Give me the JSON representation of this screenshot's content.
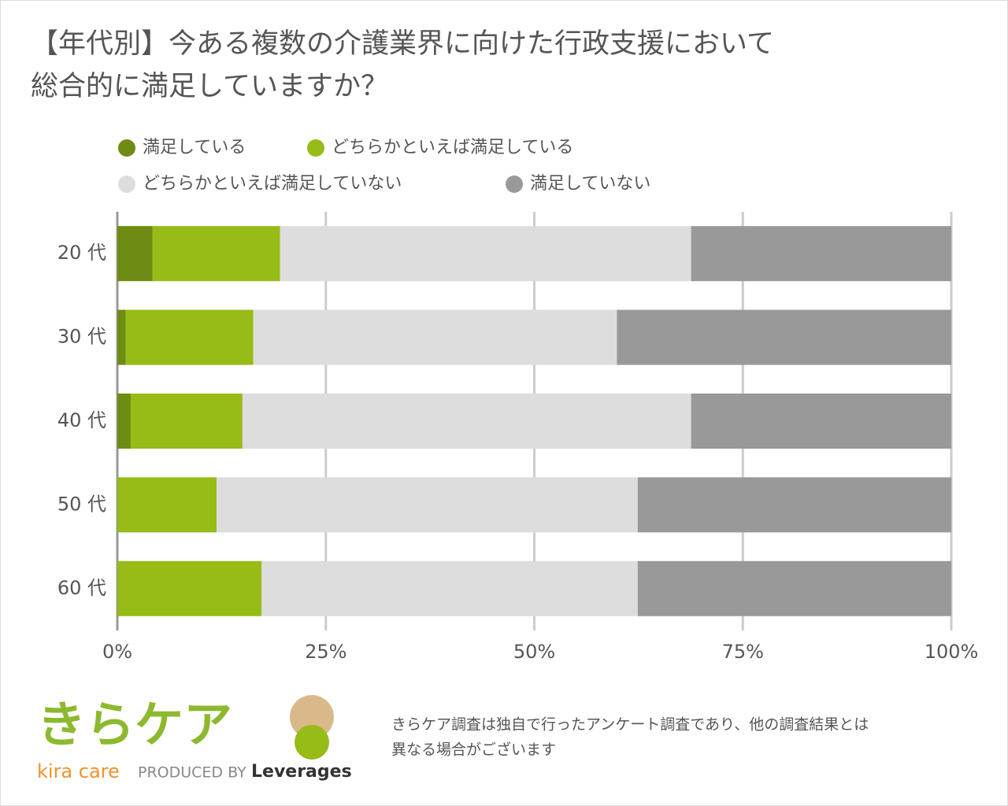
{
  "chart_data": {
    "type": "stacked_barh",
    "title": [
      "【年代別】今ある複数の介護業界に向けた行政支援において",
      "総合的に満足していますか？"
    ],
    "categories": [
      "20 代",
      "30 代",
      "40 代",
      "50 代",
      "60 代"
    ],
    "series": [
      {
        "name": "満足している",
        "color": "#6e8b14",
        "values": [
          4.2,
          1.0,
          1.6,
          0,
          0
        ]
      },
      {
        "name": "どちらかといえば満足している",
        "color": "#97bb17",
        "values": [
          15.3,
          15.3,
          13.4,
          11.9,
          17.3
        ]
      },
      {
        "name": "どちらかといえば満足していない",
        "color": "#dddddd",
        "values": [
          49.3,
          43.6,
          53.8,
          50.5,
          45.1
        ]
      },
      {
        "name": "満足していない",
        "color": "#999999",
        "values": [
          31.2,
          40.1,
          31.2,
          37.6,
          37.6
        ]
      }
    ],
    "xlim": [
      0,
      100
    ],
    "xticks": [
      {
        "value": 0,
        "label": "0%"
      },
      {
        "value": 25,
        "label": "25%"
      },
      {
        "value": 50,
        "label": "50%"
      },
      {
        "value": 75,
        "label": "75%"
      },
      {
        "value": 100,
        "label": "100%"
      }
    ],
    "grid": true
  },
  "footer": {
    "logo": "きらケア",
    "logo_sub": "kira care",
    "produced_by": "PRODUCED BY",
    "company": "Leverages",
    "note": [
      "きらケア調査は独自で行ったアンケート調査であり、他の調査結果とは",
      "異なる場合がございます"
    ]
  }
}
